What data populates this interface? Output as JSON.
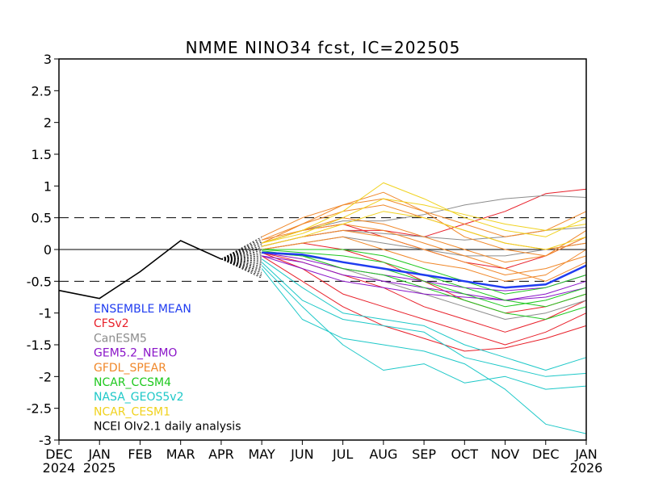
{
  "chart_data": {
    "type": "line",
    "title": "NMME NINO34 fcst, IC=202505",
    "xlabel": "",
    "ylabel": "",
    "ylim": [
      -3,
      3
    ],
    "yticks": [
      "3",
      "2.5",
      "2",
      "1.5",
      "1",
      "0.5",
      "0",
      "-0.5",
      "-1",
      "-1.5",
      "-2",
      "-2.5",
      "-3"
    ],
    "x_months": [
      "DEC",
      "JAN",
      "FEB",
      "MAR",
      "APR",
      "MAY",
      "JUN",
      "JUL",
      "AUG",
      "SEP",
      "OCT",
      "NOV",
      "DEC",
      "JAN"
    ],
    "x_years": [
      {
        "label": "2024",
        "index": 0
      },
      {
        "label": "2025",
        "index": 1
      },
      {
        "label": "2026",
        "index": 13
      }
    ],
    "reference_lines": [
      {
        "y": 0.5,
        "style": "dashed"
      },
      {
        "y": 0,
        "style": "solid"
      },
      {
        "y": -0.5,
        "style": "dashed"
      }
    ],
    "legend_position": "bottom-left",
    "observed": {
      "name": "NCEI OIv2.1 daily analysis",
      "color": "#000000",
      "x": [
        -0.2,
        1.0,
        2.0,
        3.0,
        4.0
      ],
      "y": [
        -0.62,
        -0.77,
        -0.35,
        0.14,
        -0.15
      ]
    },
    "series": [
      {
        "name": "ENSEMBLE MEAN",
        "color": "#1f3cf0",
        "members": [
          [
            -0.05,
            -0.08,
            -0.2,
            -0.3,
            -0.4,
            -0.5,
            -0.6,
            -0.55,
            -0.25
          ]
        ]
      },
      {
        "name": "CFSv2",
        "color": "#e8202a",
        "members": [
          [
            0.05,
            0.2,
            0.3,
            0.3,
            0.2,
            0.4,
            0.6,
            0.88,
            0.95
          ],
          [
            -0.05,
            -0.3,
            -0.7,
            -0.9,
            -1.1,
            -1.3,
            -1.5,
            -1.3,
            -1.0
          ],
          [
            -0.1,
            -0.5,
            -0.9,
            -1.2,
            -1.4,
            -1.6,
            -1.55,
            -1.4,
            -1.2
          ],
          [
            0.0,
            0.1,
            0.0,
            -0.2,
            -0.5,
            -0.8,
            -1.0,
            -0.9,
            -0.7
          ],
          [
            0.1,
            0.3,
            0.4,
            0.2,
            0.0,
            -0.2,
            -0.3,
            -0.1,
            0.2
          ],
          [
            -0.05,
            -0.2,
            -0.4,
            -0.6,
            -0.9,
            -1.1,
            -1.3,
            -1.1,
            -0.8
          ]
        ]
      },
      {
        "name": "CanESM5",
        "color": "#8c8c8c",
        "members": [
          [
            0.1,
            0.3,
            0.45,
            0.45,
            0.55,
            0.7,
            0.8,
            0.85,
            0.82
          ],
          [
            0.0,
            0.1,
            0.2,
            0.1,
            0.0,
            -0.1,
            -0.1,
            0.0,
            0.1
          ],
          [
            -0.05,
            -0.1,
            -0.3,
            -0.5,
            -0.7,
            -0.9,
            -1.1,
            -1.0,
            -0.8
          ],
          [
            0.05,
            0.2,
            0.3,
            0.25,
            0.2,
            0.15,
            0.2,
            0.3,
            0.35
          ]
        ]
      },
      {
        "name": "GEM5.2_NEMO",
        "color": "#8a14c8",
        "members": [
          [
            -0.1,
            -0.2,
            -0.4,
            -0.5,
            -0.6,
            -0.7,
            -0.8,
            -0.7,
            -0.5
          ],
          [
            -0.05,
            -0.15,
            -0.3,
            -0.4,
            -0.5,
            -0.6,
            -0.65,
            -0.6,
            -0.4
          ],
          [
            -0.1,
            -0.3,
            -0.5,
            -0.6,
            -0.7,
            -0.75,
            -0.8,
            -0.75,
            -0.6
          ]
        ]
      },
      {
        "name": "GFDL_SPEAR",
        "color": "#f0882a",
        "members": [
          [
            0.15,
            0.4,
            0.6,
            0.7,
            0.5,
            0.3,
            0.1,
            0.0,
            0.1
          ],
          [
            0.2,
            0.5,
            0.7,
            0.9,
            0.6,
            0.2,
            0.0,
            -0.1,
            0.2
          ],
          [
            0.1,
            0.3,
            0.5,
            0.4,
            0.2,
            0.0,
            -0.2,
            -0.1,
            0.3
          ],
          [
            0.05,
            0.2,
            0.3,
            0.2,
            0.0,
            -0.2,
            -0.4,
            -0.3,
            -0.1
          ],
          [
            0.1,
            0.4,
            0.7,
            0.8,
            0.6,
            0.4,
            0.2,
            0.3,
            0.6
          ],
          [
            0.0,
            0.1,
            0.2,
            0.0,
            -0.2,
            -0.3,
            -0.5,
            -0.4,
            0.0
          ],
          [
            0.15,
            0.3,
            0.4,
            0.3,
            0.1,
            -0.1,
            -0.3,
            -0.5,
            -0.2
          ]
        ]
      },
      {
        "name": "NCAR_CCSM4",
        "color": "#1ec81e",
        "members": [
          [
            -0.05,
            -0.1,
            -0.2,
            -0.3,
            -0.5,
            -0.7,
            -0.9,
            -0.8,
            -0.6
          ],
          [
            0.0,
            -0.05,
            -0.1,
            -0.2,
            -0.4,
            -0.6,
            -0.8,
            -0.9,
            -0.7
          ],
          [
            -0.02,
            -0.1,
            -0.3,
            -0.4,
            -0.6,
            -0.8,
            -1.0,
            -1.1,
            -0.9
          ],
          [
            0.0,
            0.0,
            0.0,
            -0.1,
            -0.3,
            -0.5,
            -0.7,
            -0.6,
            -0.4
          ]
        ]
      },
      {
        "name": "NASA_GEOS5v2",
        "color": "#1ec8c8",
        "members": [
          [
            -0.3,
            -1.1,
            -1.4,
            -1.5,
            -1.6,
            -1.8,
            -2.2,
            -2.75,
            -2.9
          ],
          [
            -0.2,
            -0.8,
            -1.1,
            -1.2,
            -1.3,
            -1.7,
            -1.85,
            -2.0,
            -1.95
          ],
          [
            -0.25,
            -0.9,
            -1.5,
            -1.9,
            -1.8,
            -2.1,
            -2.0,
            -2.2,
            -2.15
          ],
          [
            -0.15,
            -0.6,
            -1.0,
            -1.1,
            -1.2,
            -1.5,
            -1.7,
            -1.9,
            -1.7
          ]
        ]
      },
      {
        "name": "NCAR_CESM1",
        "color": "#f0d21e",
        "members": [
          [
            0.1,
            0.3,
            0.6,
            1.05,
            0.8,
            0.5,
            0.3,
            0.2,
            0.5
          ],
          [
            0.05,
            0.2,
            0.4,
            0.6,
            0.5,
            0.3,
            0.1,
            0.0,
            0.2
          ],
          [
            0.1,
            0.25,
            0.5,
            0.8,
            0.7,
            0.55,
            0.4,
            0.3,
            0.4
          ]
        ]
      }
    ],
    "forecast_start_index": 5
  }
}
